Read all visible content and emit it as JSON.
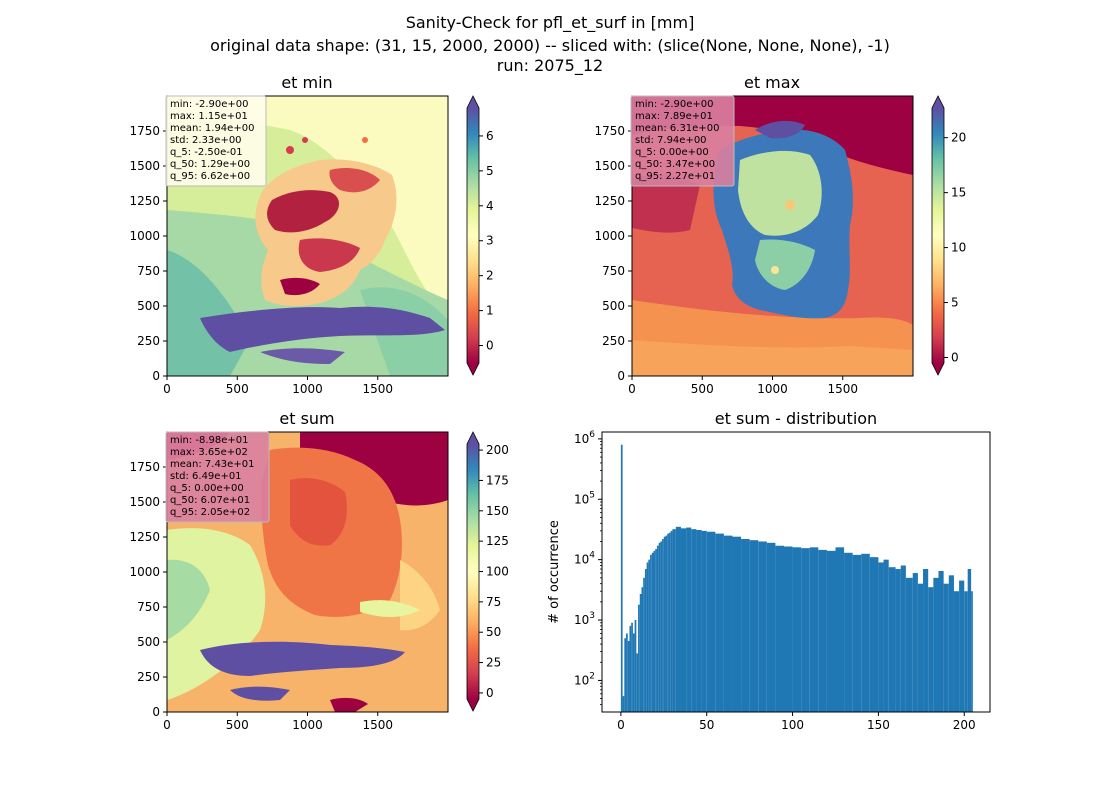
{
  "suptitle": {
    "line1": "Sanity-Check for pfl_et_surf in [mm]",
    "line2": "original data shape: (31, 15, 2000, 2000) -- sliced with: (slice(None, None, None), -1)",
    "line3": "run: 2075_12"
  },
  "chart_data": [
    {
      "type": "heatmap",
      "title": "et min",
      "colormap": "Spectral",
      "xlim": [
        0,
        2000
      ],
      "ylim": [
        0,
        2000
      ],
      "xticks": [
        "0",
        "500",
        "1000",
        "1500"
      ],
      "yticks": [
        "0",
        "250",
        "500",
        "750",
        "1000",
        "1250",
        "1500",
        "1750"
      ],
      "colorbar": {
        "range": [
          -0.5,
          6.8
        ],
        "ticks": [
          "0",
          "1",
          "2",
          "3",
          "4",
          "5",
          "6"
        ]
      },
      "stats": [
        "min: -2.90e+00",
        "max: 1.15e+01",
        "mean: 1.94e+00",
        "std: 2.33e+00",
        "q_5: -2.50e-01",
        "q_50: 1.29e+00",
        "q_95: 6.62e+00"
      ],
      "stats_box_color": "#fffdea"
    },
    {
      "type": "heatmap",
      "title": "et max",
      "colormap": "Spectral",
      "xlim": [
        0,
        2000
      ],
      "ylim": [
        0,
        2000
      ],
      "xticks": [
        "0",
        "500",
        "1000",
        "1500"
      ],
      "yticks": [
        "0",
        "250",
        "500",
        "750",
        "1000",
        "1250",
        "1500",
        "1750"
      ],
      "colorbar": {
        "range": [
          -0.5,
          22.7
        ],
        "ticks": [
          "0",
          "5",
          "10",
          "15",
          "20"
        ]
      },
      "stats": [
        "min: -2.90e+00",
        "max: 7.89e+01",
        "mean: 6.31e+00",
        "std: 7.94e+00",
        "q_5: 0.00e+00",
        "q_50: 3.47e+00",
        "q_95: 2.27e+01"
      ],
      "stats_box_color": "#d980a0"
    },
    {
      "type": "heatmap",
      "title": "et sum",
      "colormap": "Spectral",
      "xlim": [
        0,
        2000
      ],
      "ylim": [
        0,
        2000
      ],
      "xticks": [
        "0",
        "500",
        "1000",
        "1500"
      ],
      "yticks": [
        "0",
        "250",
        "500",
        "750",
        "1000",
        "1250",
        "1500",
        "1750"
      ],
      "colorbar": {
        "range": [
          -5,
          205
        ],
        "ticks": [
          "0",
          "25",
          "50",
          "75",
          "100",
          "125",
          "150",
          "175",
          "200"
        ]
      },
      "stats": [
        "min: -8.98e+01",
        "max: 3.65e+02",
        "mean: 7.43e+01",
        "std: 6.49e+01",
        "q_5: 0.00e+00",
        "q_50: 6.07e+01",
        "q_95: 2.05e+02"
      ],
      "stats_box_color": "#d980a0"
    },
    {
      "type": "bar",
      "title": "et sum - distribution",
      "ylabel": "# of occurrence",
      "xlabel": "",
      "yscale": "log",
      "xlim": [
        -11,
        215
      ],
      "ylim": [
        30,
        1300000
      ],
      "xticks": [
        0,
        50,
        100,
        150,
        200
      ],
      "yticks": [
        {
          "value": 100,
          "label": "10^2"
        },
        {
          "value": 1000,
          "label": "10^3"
        },
        {
          "value": 10000,
          "label": "10^4"
        },
        {
          "value": 100000,
          "label": "10^5"
        },
        {
          "value": 1000000,
          "label": "10^6"
        }
      ],
      "bar_color": "#1f77b4",
      "bin_width": 1.03,
      "bins": [
        {
          "x": 0,
          "count": 800000
        },
        {
          "x": 1,
          "count": 55
        },
        {
          "x": 2,
          "count": 500
        },
        {
          "x": 3,
          "count": 600
        },
        {
          "x": 4,
          "count": 450
        },
        {
          "x": 5,
          "count": 800
        },
        {
          "x": 6,
          "count": 900
        },
        {
          "x": 7,
          "count": 600
        },
        {
          "x": 8,
          "count": 1000
        },
        {
          "x": 9,
          "count": 280
        },
        {
          "x": 10,
          "count": 1800
        },
        {
          "x": 11,
          "count": 2700
        },
        {
          "x": 12,
          "count": 3500
        },
        {
          "x": 13,
          "count": 5000
        },
        {
          "x": 14,
          "count": 7000
        },
        {
          "x": 15,
          "count": 9000
        },
        {
          "x": 16,
          "count": 10000
        },
        {
          "x": 17,
          "count": 12000
        },
        {
          "x": 18,
          "count": 13000
        },
        {
          "x": 19,
          "count": 14000
        },
        {
          "x": 20,
          "count": 15000
        },
        {
          "x": 21,
          "count": 17000
        },
        {
          "x": 22,
          "count": 19000
        },
        {
          "x": 23,
          "count": 20000
        },
        {
          "x": 24,
          "count": 22000
        },
        {
          "x": 25,
          "count": 24000
        },
        {
          "x": 26,
          "count": 25000
        },
        {
          "x": 27,
          "count": 27000
        },
        {
          "x": 28,
          "count": 28000
        },
        {
          "x": 29,
          "count": 30000
        },
        {
          "x": 30,
          "count": 32000
        },
        {
          "x": 32,
          "count": 35000
        },
        {
          "x": 35,
          "count": 33000
        },
        {
          "x": 38,
          "count": 34000
        },
        {
          "x": 41,
          "count": 32000
        },
        {
          "x": 44,
          "count": 31000
        },
        {
          "x": 47,
          "count": 30000
        },
        {
          "x": 50,
          "count": 29000
        },
        {
          "x": 55,
          "count": 27000
        },
        {
          "x": 60,
          "count": 25000
        },
        {
          "x": 65,
          "count": 24000
        },
        {
          "x": 70,
          "count": 22000
        },
        {
          "x": 75,
          "count": 21000
        },
        {
          "x": 80,
          "count": 20000
        },
        {
          "x": 85,
          "count": 19000
        },
        {
          "x": 90,
          "count": 17000
        },
        {
          "x": 95,
          "count": 16500
        },
        {
          "x": 100,
          "count": 16000
        },
        {
          "x": 105,
          "count": 15500
        },
        {
          "x": 110,
          "count": 16000
        },
        {
          "x": 115,
          "count": 14500
        },
        {
          "x": 120,
          "count": 14000
        },
        {
          "x": 125,
          "count": 16000
        },
        {
          "x": 130,
          "count": 13000
        },
        {
          "x": 135,
          "count": 12000
        },
        {
          "x": 140,
          "count": 12500
        },
        {
          "x": 145,
          "count": 11000
        },
        {
          "x": 150,
          "count": 9000
        },
        {
          "x": 153,
          "count": 10000
        },
        {
          "x": 156,
          "count": 7500
        },
        {
          "x": 160,
          "count": 7000
        },
        {
          "x": 163,
          "count": 8000
        },
        {
          "x": 166,
          "count": 5000
        },
        {
          "x": 170,
          "count": 6000
        },
        {
          "x": 173,
          "count": 4000
        },
        {
          "x": 176,
          "count": 7000
        },
        {
          "x": 179,
          "count": 3500
        },
        {
          "x": 182,
          "count": 5000
        },
        {
          "x": 185,
          "count": 6500
        },
        {
          "x": 188,
          "count": 4000
        },
        {
          "x": 191,
          "count": 5500
        },
        {
          "x": 194,
          "count": 3000
        },
        {
          "x": 197,
          "count": 4500
        },
        {
          "x": 200,
          "count": 3000
        },
        {
          "x": 202,
          "count": 7000
        },
        {
          "x": 204,
          "count": 3000
        }
      ]
    }
  ]
}
